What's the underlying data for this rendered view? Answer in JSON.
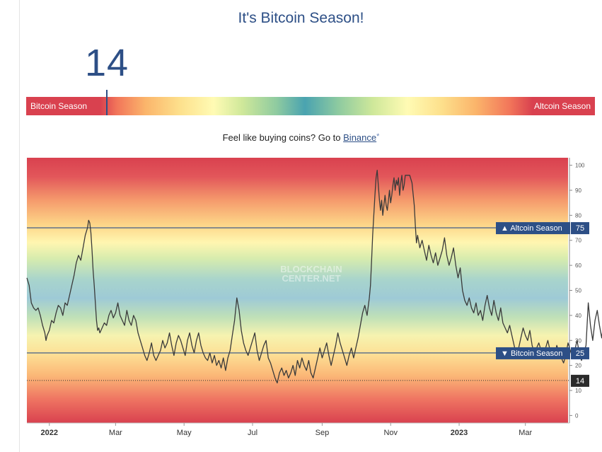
{
  "page": {
    "title": "It's Bitcoin Season!",
    "index_value": "14",
    "bar_left_label": "Bitcoin Season",
    "bar_right_label": "Altcoin Season",
    "promo_text": "Feel like buying coins? Go to ",
    "promo_link": "Binance",
    "promo_mark": "*"
  },
  "colors": {
    "accent": "#2d4f86",
    "line": "#3a3a3a",
    "bitcoin_zone": "#d9414f",
    "neutral_zone": "#9ecad6"
  },
  "chart_data": {
    "type": "line",
    "watermark": [
      "BLOCKCHAIN",
      "CENTER.NET"
    ],
    "x_ticks": [
      "2022",
      "Mar",
      "May",
      "Jul",
      "Sep",
      "Nov",
      "2023",
      "Mar"
    ],
    "y_ticks": [
      0,
      10,
      20,
      30,
      40,
      50,
      60,
      70,
      80,
      90,
      100
    ],
    "ylim": [
      -3,
      103
    ],
    "grid": false,
    "x_start": "2021-12-12",
    "x_end": "2023-04-08",
    "thresholds": [
      {
        "label": "▲ Altcoin Season",
        "value": 75
      },
      {
        "label": "▼ Bitcoin Season",
        "value": 25
      }
    ],
    "current": {
      "value": 14
    },
    "series": [
      {
        "values": [
          [
            0,
            55
          ],
          [
            2,
            52
          ],
          [
            4,
            45
          ],
          [
            6,
            43
          ],
          [
            8,
            42
          ],
          [
            10,
            43
          ],
          [
            12,
            40
          ],
          [
            14,
            36
          ],
          [
            16,
            33
          ],
          [
            17,
            30
          ],
          [
            18,
            32
          ],
          [
            20,
            34
          ],
          [
            22,
            38
          ],
          [
            24,
            37
          ],
          [
            26,
            41
          ],
          [
            28,
            44
          ],
          [
            30,
            43
          ],
          [
            32,
            40
          ],
          [
            34,
            45
          ],
          [
            36,
            44
          ],
          [
            38,
            48
          ],
          [
            40,
            52
          ],
          [
            42,
            56
          ],
          [
            44,
            61
          ],
          [
            46,
            64
          ],
          [
            48,
            62
          ],
          [
            50,
            67
          ],
          [
            52,
            72
          ],
          [
            54,
            75
          ],
          [
            55,
            78
          ],
          [
            56,
            77
          ],
          [
            57,
            73
          ],
          [
            58,
            66
          ],
          [
            59,
            58
          ],
          [
            60,
            52
          ],
          [
            61,
            45
          ],
          [
            62,
            38
          ],
          [
            63,
            34
          ],
          [
            64,
            35
          ],
          [
            65,
            33
          ],
          [
            67,
            35
          ],
          [
            69,
            37
          ],
          [
            71,
            36
          ],
          [
            73,
            40
          ],
          [
            75,
            42
          ],
          [
            77,
            39
          ],
          [
            79,
            41
          ],
          [
            81,
            45
          ],
          [
            83,
            40
          ],
          [
            85,
            38
          ],
          [
            87,
            36
          ],
          [
            89,
            42
          ],
          [
            91,
            38
          ],
          [
            93,
            36
          ],
          [
            95,
            40
          ],
          [
            97,
            38
          ],
          [
            99,
            33
          ],
          [
            101,
            30
          ],
          [
            103,
            27
          ],
          [
            105,
            24
          ],
          [
            107,
            22
          ],
          [
            109,
            25
          ],
          [
            111,
            29
          ],
          [
            113,
            24
          ],
          [
            115,
            22
          ],
          [
            117,
            24
          ],
          [
            119,
            26
          ],
          [
            121,
            30
          ],
          [
            123,
            27
          ],
          [
            125,
            29
          ],
          [
            127,
            33
          ],
          [
            129,
            28
          ],
          [
            131,
            24
          ],
          [
            133,
            29
          ],
          [
            135,
            32
          ],
          [
            137,
            30
          ],
          [
            139,
            27
          ],
          [
            141,
            24
          ],
          [
            143,
            30
          ],
          [
            145,
            33
          ],
          [
            147,
            28
          ],
          [
            149,
            25
          ],
          [
            151,
            30
          ],
          [
            153,
            33
          ],
          [
            155,
            28
          ],
          [
            157,
            25
          ],
          [
            159,
            23
          ],
          [
            161,
            22
          ],
          [
            163,
            25
          ],
          [
            165,
            21
          ],
          [
            167,
            24
          ],
          [
            169,
            20
          ],
          [
            171,
            22
          ],
          [
            173,
            19
          ],
          [
            175,
            23
          ],
          [
            177,
            18
          ],
          [
            179,
            23
          ],
          [
            181,
            26
          ],
          [
            183,
            32
          ],
          [
            185,
            38
          ],
          [
            187,
            47
          ],
          [
            189,
            42
          ],
          [
            191,
            34
          ],
          [
            193,
            29
          ],
          [
            195,
            26
          ],
          [
            197,
            24
          ],
          [
            199,
            27
          ],
          [
            201,
            30
          ],
          [
            203,
            33
          ],
          [
            205,
            26
          ],
          [
            207,
            22
          ],
          [
            209,
            25
          ],
          [
            211,
            28
          ],
          [
            213,
            30
          ],
          [
            215,
            23
          ],
          [
            217,
            21
          ],
          [
            219,
            18
          ],
          [
            221,
            15
          ],
          [
            223,
            13
          ],
          [
            225,
            17
          ],
          [
            227,
            19
          ],
          [
            229,
            16
          ],
          [
            231,
            18
          ],
          [
            233,
            15
          ],
          [
            235,
            17
          ],
          [
            237,
            20
          ],
          [
            239,
            16
          ],
          [
            241,
            22
          ],
          [
            243,
            19
          ],
          [
            245,
            23
          ],
          [
            247,
            20
          ],
          [
            249,
            18
          ],
          [
            251,
            22
          ],
          [
            253,
            17
          ],
          [
            255,
            15
          ],
          [
            257,
            19
          ],
          [
            259,
            23
          ],
          [
            261,
            27
          ],
          [
            263,
            23
          ],
          [
            265,
            26
          ],
          [
            267,
            29
          ],
          [
            269,
            24
          ],
          [
            271,
            20
          ],
          [
            273,
            24
          ],
          [
            275,
            28
          ],
          [
            277,
            33
          ],
          [
            279,
            29
          ],
          [
            281,
            26
          ],
          [
            283,
            23
          ],
          [
            285,
            20
          ],
          [
            287,
            24
          ],
          [
            289,
            27
          ],
          [
            291,
            23
          ],
          [
            293,
            27
          ],
          [
            295,
            31
          ],
          [
            297,
            36
          ],
          [
            299,
            41
          ],
          [
            301,
            44
          ],
          [
            303,
            40
          ],
          [
            305,
            47
          ],
          [
            306,
            52
          ],
          [
            307,
            62
          ],
          [
            308,
            72
          ],
          [
            309,
            80
          ],
          [
            310,
            88
          ],
          [
            311,
            95
          ],
          [
            312,
            98
          ],
          [
            313,
            92
          ],
          [
            314,
            86
          ],
          [
            315,
            82
          ],
          [
            316,
            86
          ],
          [
            317,
            80
          ],
          [
            318,
            84
          ],
          [
            319,
            88
          ],
          [
            320,
            84
          ],
          [
            321,
            82
          ],
          [
            322,
            86
          ],
          [
            323,
            90
          ],
          [
            324,
            85
          ],
          [
            325,
            88
          ],
          [
            326,
            92
          ],
          [
            327,
            95
          ],
          [
            328,
            90
          ],
          [
            329,
            94
          ],
          [
            330,
            92
          ],
          [
            331,
            95
          ],
          [
            332,
            88
          ],
          [
            333,
            93
          ],
          [
            334,
            96
          ],
          [
            335,
            90
          ],
          [
            336,
            92
          ],
          [
            337,
            96
          ],
          [
            339,
            96
          ],
          [
            341,
            96
          ],
          [
            343,
            93
          ],
          [
            345,
            84
          ],
          [
            346,
            76
          ],
          [
            347,
            69
          ],
          [
            348,
            72
          ],
          [
            350,
            67
          ],
          [
            352,
            70
          ],
          [
            354,
            66
          ],
          [
            356,
            62
          ],
          [
            358,
            68
          ],
          [
            360,
            64
          ],
          [
            362,
            61
          ],
          [
            364,
            65
          ],
          [
            366,
            60
          ],
          [
            368,
            63
          ],
          [
            370,
            66
          ],
          [
            372,
            71
          ],
          [
            374,
            64
          ],
          [
            376,
            60
          ],
          [
            378,
            63
          ],
          [
            380,
            67
          ],
          [
            382,
            60
          ],
          [
            384,
            55
          ],
          [
            386,
            59
          ],
          [
            388,
            50
          ],
          [
            390,
            46
          ],
          [
            392,
            44
          ],
          [
            394,
            47
          ],
          [
            396,
            43
          ],
          [
            398,
            41
          ],
          [
            400,
            45
          ],
          [
            402,
            40
          ],
          [
            404,
            42
          ],
          [
            406,
            38
          ],
          [
            408,
            44
          ],
          [
            410,
            48
          ],
          [
            412,
            43
          ],
          [
            414,
            40
          ],
          [
            416,
            46
          ],
          [
            418,
            41
          ],
          [
            420,
            38
          ],
          [
            422,
            43
          ],
          [
            424,
            37
          ],
          [
            426,
            35
          ],
          [
            428,
            33
          ],
          [
            430,
            36
          ],
          [
            432,
            32
          ],
          [
            434,
            28
          ],
          [
            436,
            24
          ],
          [
            438,
            27
          ],
          [
            440,
            31
          ],
          [
            442,
            35
          ],
          [
            444,
            32
          ],
          [
            446,
            30
          ],
          [
            448,
            34
          ],
          [
            450,
            28
          ],
          [
            452,
            25
          ],
          [
            454,
            27
          ],
          [
            456,
            29
          ],
          [
            458,
            26
          ],
          [
            460,
            24
          ],
          [
            462,
            27
          ],
          [
            464,
            30
          ],
          [
            466,
            26
          ],
          [
            468,
            23
          ],
          [
            470,
            24
          ],
          [
            472,
            28
          ],
          [
            474,
            25
          ],
          [
            476,
            23
          ],
          [
            478,
            21
          ],
          [
            480,
            24
          ],
          [
            482,
            29
          ],
          [
            484,
            26
          ],
          [
            486,
            23
          ],
          [
            488,
            26
          ],
          [
            490,
            30
          ],
          [
            492,
            25
          ],
          [
            494,
            22
          ],
          [
            496,
            25
          ],
          [
            498,
            28
          ],
          [
            500,
            45
          ],
          [
            502,
            36
          ],
          [
            504,
            30
          ],
          [
            506,
            38
          ],
          [
            508,
            42
          ],
          [
            510,
            36
          ],
          [
            512,
            31
          ],
          [
            514,
            38
          ],
          [
            516,
            47
          ],
          [
            518,
            40
          ],
          [
            520,
            36
          ],
          [
            522,
            42
          ],
          [
            524,
            36
          ],
          [
            526,
            31
          ],
          [
            528,
            28
          ],
          [
            530,
            32
          ],
          [
            532,
            27
          ],
          [
            534,
            23
          ],
          [
            536,
            27
          ],
          [
            538,
            25
          ],
          [
            540,
            22
          ],
          [
            542,
            26
          ],
          [
            544,
            24
          ],
          [
            546,
            22
          ],
          [
            548,
            25
          ],
          [
            550,
            23
          ],
          [
            552,
            24
          ],
          [
            554,
            21
          ],
          [
            556,
            19
          ],
          [
            558,
            16
          ],
          [
            560,
            14
          ]
        ]
      }
    ]
  }
}
